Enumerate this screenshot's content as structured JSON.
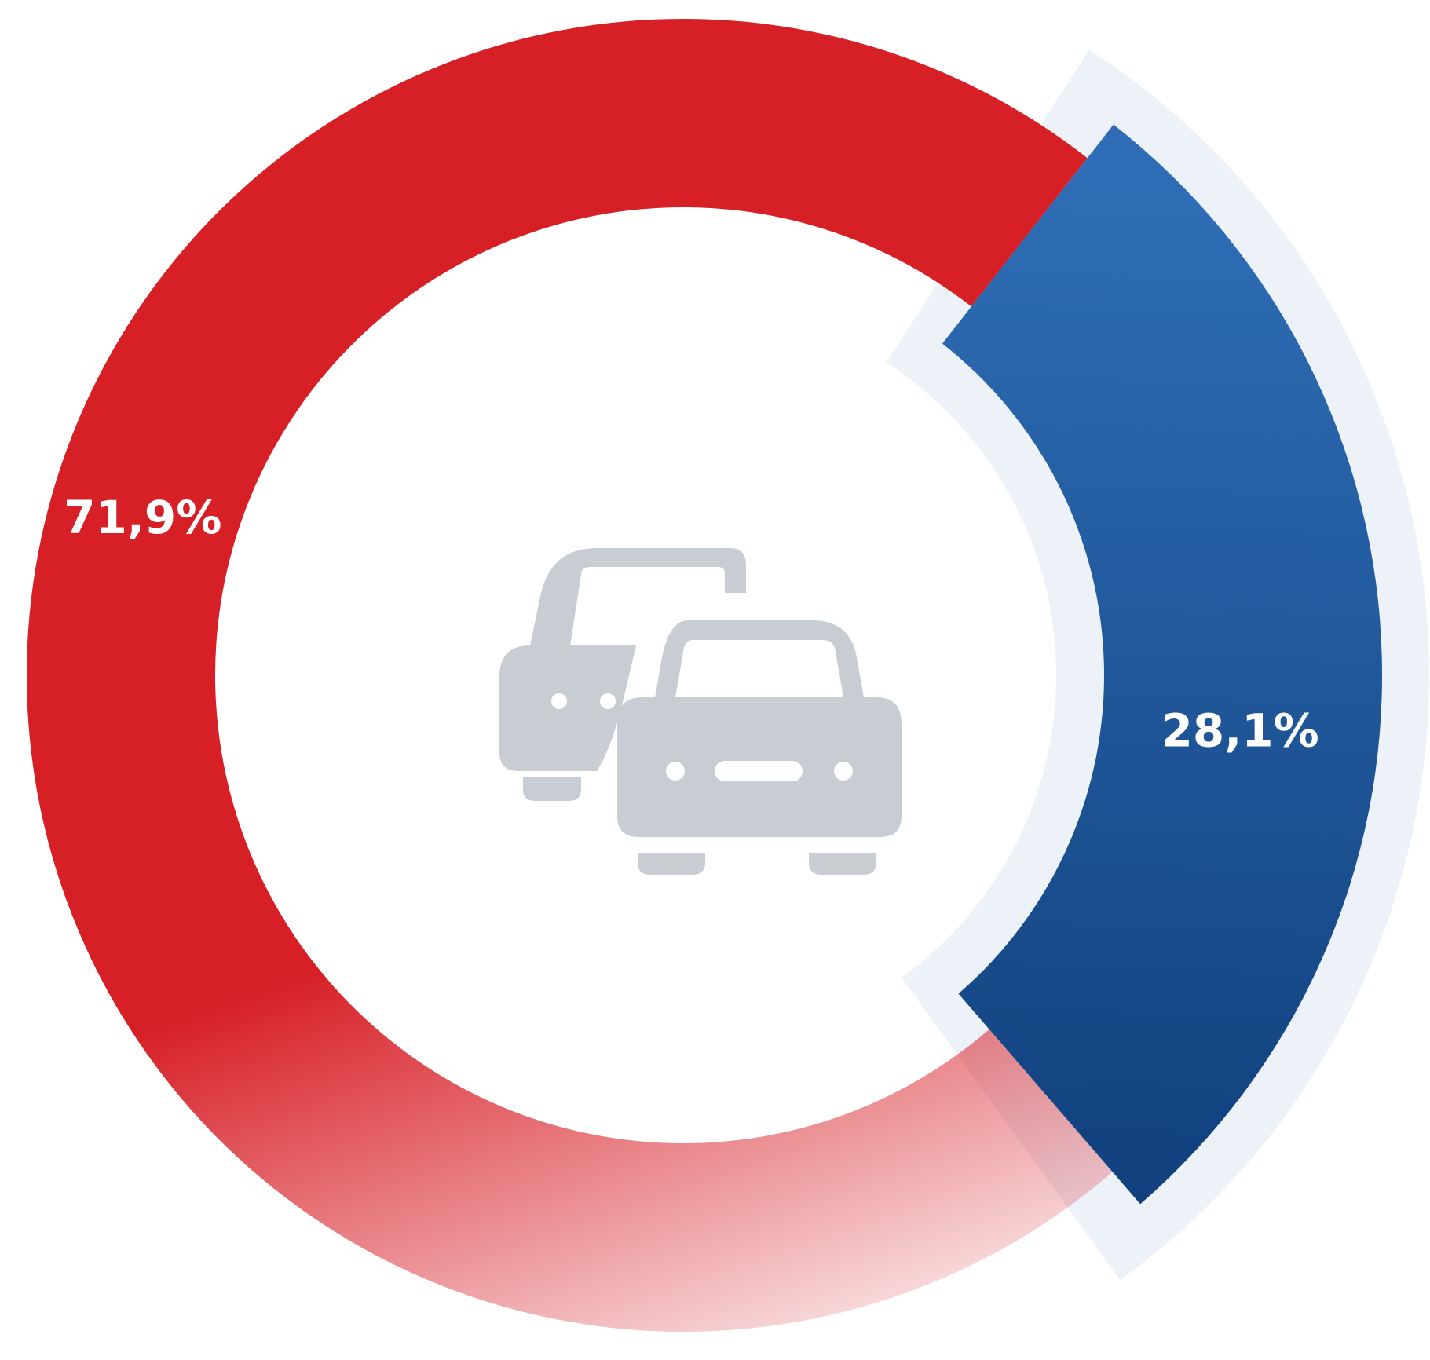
{
  "chart_data": {
    "type": "pie",
    "donut": true,
    "slices": [
      {
        "label": "71,9%",
        "value": 71.9,
        "color": "#d71f26",
        "gradient_to": "#ffffff",
        "highlighted": false
      },
      {
        "label": "28,1%",
        "value": 28.1,
        "color": "#2e6db5",
        "gradient_to": "#0f3e7a",
        "highlighted": true
      }
    ],
    "track_color": "#edf1f8",
    "center_icon": "cars-icon",
    "center_icon_color": "#c8ccd3"
  }
}
